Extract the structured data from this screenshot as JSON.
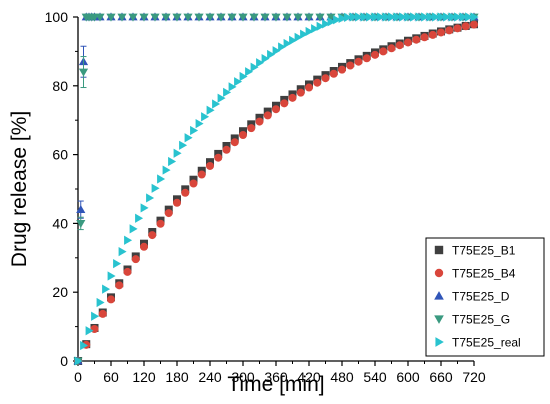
{
  "chart_data": {
    "type": "scatter",
    "xlabel": "Time [min]",
    "ylabel": "Drug release [%]",
    "xlim": [
      0,
      720
    ],
    "ylim": [
      0,
      100
    ],
    "xticks": [
      "0",
      "60",
      "120",
      "180",
      "240",
      "300",
      "360",
      "420",
      "480",
      "540",
      "600",
      "660",
      "720"
    ],
    "yticks": [
      "0",
      "20",
      "40",
      "60",
      "80",
      "100"
    ],
    "grid": false,
    "legend_position": "bottom-right",
    "series": [
      {
        "name": "T75E25_B1",
        "marker": "square",
        "color": "#3f3f3f",
        "x": [
          0,
          15,
          30,
          45,
          60,
          75,
          90,
          105,
          120,
          135,
          150,
          165,
          180,
          195,
          210,
          225,
          240,
          255,
          270,
          285,
          300,
          315,
          330,
          345,
          360,
          375,
          390,
          405,
          420,
          435,
          450,
          465,
          480,
          495,
          510,
          525,
          540,
          555,
          570,
          585,
          600,
          615,
          630,
          645,
          660,
          675,
          690,
          705,
          720
        ],
        "y": [
          0,
          4.9,
          9.6,
          14.1,
          18.5,
          22.6,
          26.6,
          30.4,
          34.1,
          37.5,
          40.8,
          44.0,
          47.0,
          49.9,
          52.7,
          55.3,
          57.8,
          60.2,
          62.5,
          64.7,
          66.8,
          68.8,
          70.7,
          72.5,
          74.2,
          75.9,
          77.5,
          79.0,
          80.4,
          81.8,
          83.1,
          84.3,
          85.5,
          86.6,
          87.7,
          88.7,
          89.7,
          90.6,
          91.5,
          92.3,
          93.1,
          93.8,
          94.5,
          95.2,
          95.8,
          96.4,
          96.9,
          97.4,
          97.9
        ]
      },
      {
        "name": "T75E25_B4",
        "marker": "circle",
        "color": "#d9463b",
        "x": [
          0,
          15,
          30,
          45,
          60,
          75,
          90,
          105,
          120,
          135,
          150,
          165,
          180,
          195,
          210,
          225,
          240,
          255,
          270,
          285,
          300,
          315,
          330,
          345,
          360,
          375,
          390,
          405,
          420,
          435,
          450,
          465,
          480,
          495,
          510,
          525,
          540,
          555,
          570,
          585,
          600,
          615,
          630,
          645,
          660,
          675,
          690,
          705,
          720
        ],
        "y": [
          0,
          4.7,
          9.3,
          13.7,
          17.9,
          22.0,
          25.9,
          29.6,
          33.2,
          36.6,
          39.9,
          43.0,
          46.0,
          48.9,
          51.6,
          54.2,
          56.7,
          59.1,
          61.4,
          63.6,
          65.7,
          67.7,
          69.6,
          71.4,
          73.2,
          74.9,
          76.5,
          78.0,
          79.5,
          80.9,
          82.2,
          83.5,
          84.7,
          85.9,
          87.0,
          88.0,
          89.0,
          90.0,
          90.9,
          91.8,
          92.6,
          93.4,
          94.1,
          94.8,
          95.5,
          96.1,
          96.7,
          97.3,
          97.8
        ]
      },
      {
        "name": "T75E25_D",
        "marker": "triangle-up",
        "color": "#3055b8",
        "x": [
          0,
          5,
          10,
          15,
          20,
          25,
          30,
          40,
          60,
          80,
          100,
          120,
          140,
          160,
          180,
          200,
          220,
          240,
          260,
          280,
          300,
          320,
          340,
          360,
          380,
          400,
          420,
          440,
          460,
          480,
          500,
          520,
          540,
          560,
          580,
          600,
          620,
          640,
          660,
          680,
          700,
          720
        ],
        "y": [
          0,
          44,
          87,
          100,
          100,
          100,
          100,
          100,
          100,
          100,
          100,
          100,
          100,
          100,
          100,
          100,
          100,
          100,
          100,
          100,
          100,
          100,
          100,
          100,
          100,
          100,
          100,
          100,
          100,
          100,
          100,
          100,
          100,
          100,
          100,
          100,
          100,
          100,
          100,
          100,
          100,
          100
        ],
        "err": [
          0,
          2.5,
          4.5,
          0,
          0,
          0,
          0,
          0,
          0,
          0,
          0,
          0,
          0,
          0,
          0,
          0,
          0,
          0,
          0,
          0,
          0,
          0,
          0,
          0,
          0,
          0,
          0,
          0,
          0,
          0,
          0,
          0,
          0,
          0,
          0,
          0,
          0,
          0,
          0,
          0,
          0,
          0
        ]
      },
      {
        "name": "T75E25_G",
        "marker": "triangle-down",
        "color": "#3a9a80",
        "x": [
          0,
          5,
          10,
          15,
          20,
          25,
          30,
          40,
          60,
          80,
          100,
          120,
          140,
          160,
          180,
          200,
          220,
          240,
          260,
          280,
          300,
          320,
          340,
          360,
          380,
          400,
          420,
          440,
          460,
          480,
          500,
          520,
          540,
          560,
          580,
          600,
          620,
          640,
          660,
          680,
          700,
          720
        ],
        "y": [
          0,
          40,
          84,
          100,
          100,
          100,
          100,
          100,
          100,
          100,
          100,
          100,
          100,
          100,
          100,
          100,
          100,
          100,
          100,
          100,
          100,
          100,
          100,
          100,
          100,
          100,
          100,
          100,
          100,
          100,
          100,
          100,
          100,
          100,
          100,
          100,
          100,
          100,
          100,
          100,
          100,
          100
        ],
        "err": [
          0,
          1.8,
          4.5,
          0,
          0,
          0,
          0,
          0,
          0,
          0,
          0,
          0,
          0,
          0,
          0,
          0,
          0,
          0,
          0,
          0,
          0,
          0,
          0,
          0,
          0,
          0,
          0,
          0,
          0,
          0,
          0,
          0,
          0,
          0,
          0,
          0,
          0,
          0,
          0,
          0,
          0,
          0
        ]
      },
      {
        "name": "T75E25_real",
        "marker": "triangle-right",
        "color": "#29c3cf",
        "x": [
          0,
          10,
          20,
          30,
          40,
          50,
          60,
          70,
          80,
          90,
          100,
          110,
          120,
          130,
          140,
          150,
          160,
          170,
          180,
          190,
          200,
          210,
          220,
          230,
          240,
          250,
          260,
          270,
          280,
          290,
          300,
          310,
          320,
          330,
          340,
          350,
          360,
          370,
          380,
          390,
          400,
          410,
          420,
          430,
          440,
          450,
          460,
          470,
          480,
          490,
          500,
          510,
          520,
          530,
          540,
          550,
          560,
          570,
          580,
          590,
          600,
          610,
          620,
          630,
          640,
          650,
          660,
          670,
          680,
          690,
          700,
          710,
          720
        ],
        "y": [
          0,
          4.5,
          8.8,
          13.0,
          17.0,
          20.9,
          24.7,
          28.3,
          31.8,
          35.1,
          38.4,
          41.5,
          44.5,
          47.4,
          50.2,
          52.9,
          55.5,
          58.0,
          60.4,
          62.7,
          64.9,
          67.0,
          69.0,
          71.0,
          72.9,
          74.7,
          76.4,
          78.1,
          79.7,
          81.2,
          82.7,
          84.1,
          85.4,
          86.7,
          87.9,
          89.1,
          90.2,
          91.3,
          92.3,
          93.2,
          94.1,
          95.0,
          95.8,
          96.6,
          97.3,
          98.0,
          98.6,
          99.2,
          99.6,
          99.9,
          100,
          100,
          100,
          100,
          100,
          100,
          100,
          100,
          100,
          100,
          100,
          100,
          100,
          100,
          100,
          100,
          100,
          100,
          100,
          100,
          100,
          100,
          100
        ]
      }
    ]
  }
}
